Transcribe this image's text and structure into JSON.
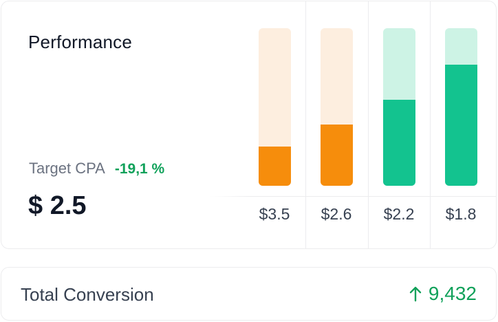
{
  "performance": {
    "title": "Performance",
    "target_label": "Target CPA",
    "target_change": "-19,1 %",
    "cpa_value": "$ 2.5"
  },
  "chart_data": {
    "type": "bar",
    "categories": [
      "$3.5",
      "$2.6",
      "$2.2",
      "$1.8"
    ],
    "values": [
      0.25,
      0.39,
      0.545,
      0.77
    ],
    "ylim": [
      0,
      1
    ],
    "colors": [
      {
        "fill": "#f68d0c",
        "track": "#fdeedf"
      },
      {
        "fill": "#f68d0c",
        "track": "#fdeedf"
      },
      {
        "fill": "#13c38f",
        "track": "#cdf3e5"
      },
      {
        "fill": "#13c38f",
        "track": "#cdf3e5"
      }
    ]
  },
  "conversion": {
    "label": "Total Conversion",
    "value": "9,432",
    "icon": "arrow-up-icon",
    "color": "#10a15a"
  }
}
